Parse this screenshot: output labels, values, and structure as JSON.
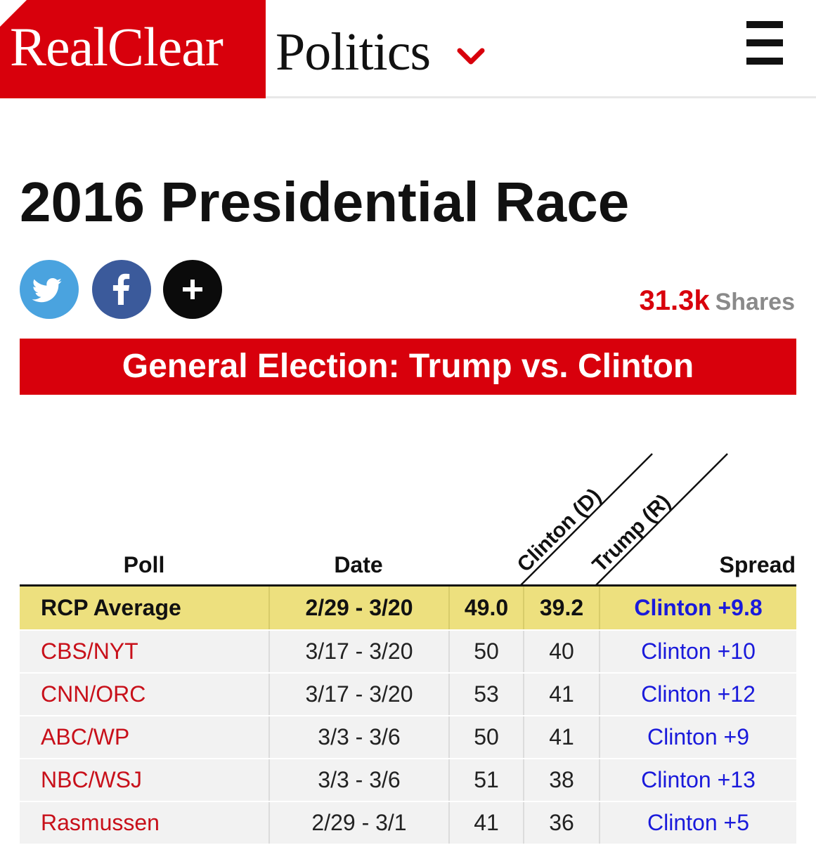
{
  "header": {
    "logo_red": "RealClear",
    "logo_black": "Politics",
    "menu_icon": "hamburger-menu-icon",
    "accent": "#d8000c"
  },
  "page": {
    "title": "2016 Presidential Race"
  },
  "share": {
    "buttons": [
      "twitter-icon",
      "facebook-icon",
      "plus-icon"
    ],
    "count": "31.3k",
    "label": "Shares"
  },
  "banner": {
    "text": "General Election: Trump vs. Clinton"
  },
  "table": {
    "headers": {
      "poll": "Poll",
      "date": "Date",
      "clinton": "Clinton (D)",
      "trump": "Trump (R)",
      "spread": "Spread"
    },
    "average": {
      "poll": "RCP Average",
      "date": "2/29 - 3/20",
      "clinton": "49.0",
      "trump": "39.2",
      "spread": "Clinton +9.8"
    },
    "rows": [
      {
        "poll": "CBS/NYT",
        "date": "3/17 - 3/20",
        "clinton": "50",
        "trump": "40",
        "spread": "Clinton +10"
      },
      {
        "poll": "CNN/ORC",
        "date": "3/17 - 3/20",
        "clinton": "53",
        "trump": "41",
        "spread": "Clinton +12"
      },
      {
        "poll": "ABC/WP",
        "date": "3/3 - 3/6",
        "clinton": "50",
        "trump": "41",
        "spread": "Clinton +9"
      },
      {
        "poll": "NBC/WSJ",
        "date": "3/3 - 3/6",
        "clinton": "51",
        "trump": "38",
        "spread": "Clinton +13"
      },
      {
        "poll": "Rasmussen",
        "date": "2/29 - 3/1",
        "clinton": "41",
        "trump": "36",
        "spread": "Clinton +5"
      }
    ]
  }
}
